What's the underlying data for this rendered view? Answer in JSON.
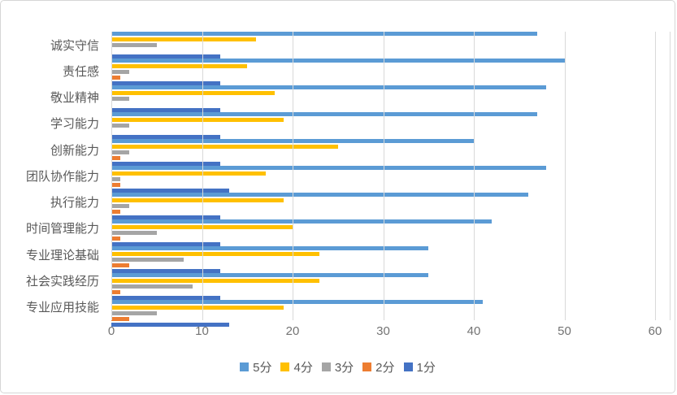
{
  "chart_data": {
    "type": "bar",
    "orientation": "horizontal",
    "title": "",
    "xlabel": "",
    "ylabel": "",
    "xlim": [
      0,
      60
    ],
    "x_ticks": [
      0,
      10,
      20,
      30,
      40,
      50,
      60
    ],
    "grid": true,
    "legend_position": "bottom",
    "categories": [
      "诚实守信",
      "责任感",
      "敬业精神",
      "学习能力",
      "创新能力",
      "团队协作能力",
      "执行能力",
      "时间管理能力",
      "专业理论基础",
      "社会实践经历",
      "专业应用技能"
    ],
    "series": [
      {
        "name": "5分",
        "color": "#5B9BD5",
        "values": [
          47,
          50,
          48,
          47,
          40,
          48,
          46,
          42,
          35,
          35,
          41
        ]
      },
      {
        "name": "4分",
        "color": "#FFC000",
        "values": [
          16,
          15,
          18,
          19,
          25,
          17,
          19,
          20,
          23,
          23,
          19
        ]
      },
      {
        "name": "3分",
        "color": "#A5A5A5",
        "values": [
          5,
          2,
          2,
          2,
          2,
          1,
          2,
          5,
          8,
          9,
          5
        ]
      },
      {
        "name": "2分",
        "color": "#ED7D31",
        "values": [
          0,
          1,
          0,
          0,
          1,
          1,
          1,
          1,
          2,
          1,
          2
        ]
      },
      {
        "name": "1分",
        "color": "#4472C4",
        "values": [
          12,
          12,
          12,
          12,
          12,
          13,
          12,
          12,
          12,
          12,
          13
        ]
      }
    ],
    "gridline_color": "#D9D9D9",
    "tick_label_color": "#737373",
    "category_label_color": "#595959"
  }
}
